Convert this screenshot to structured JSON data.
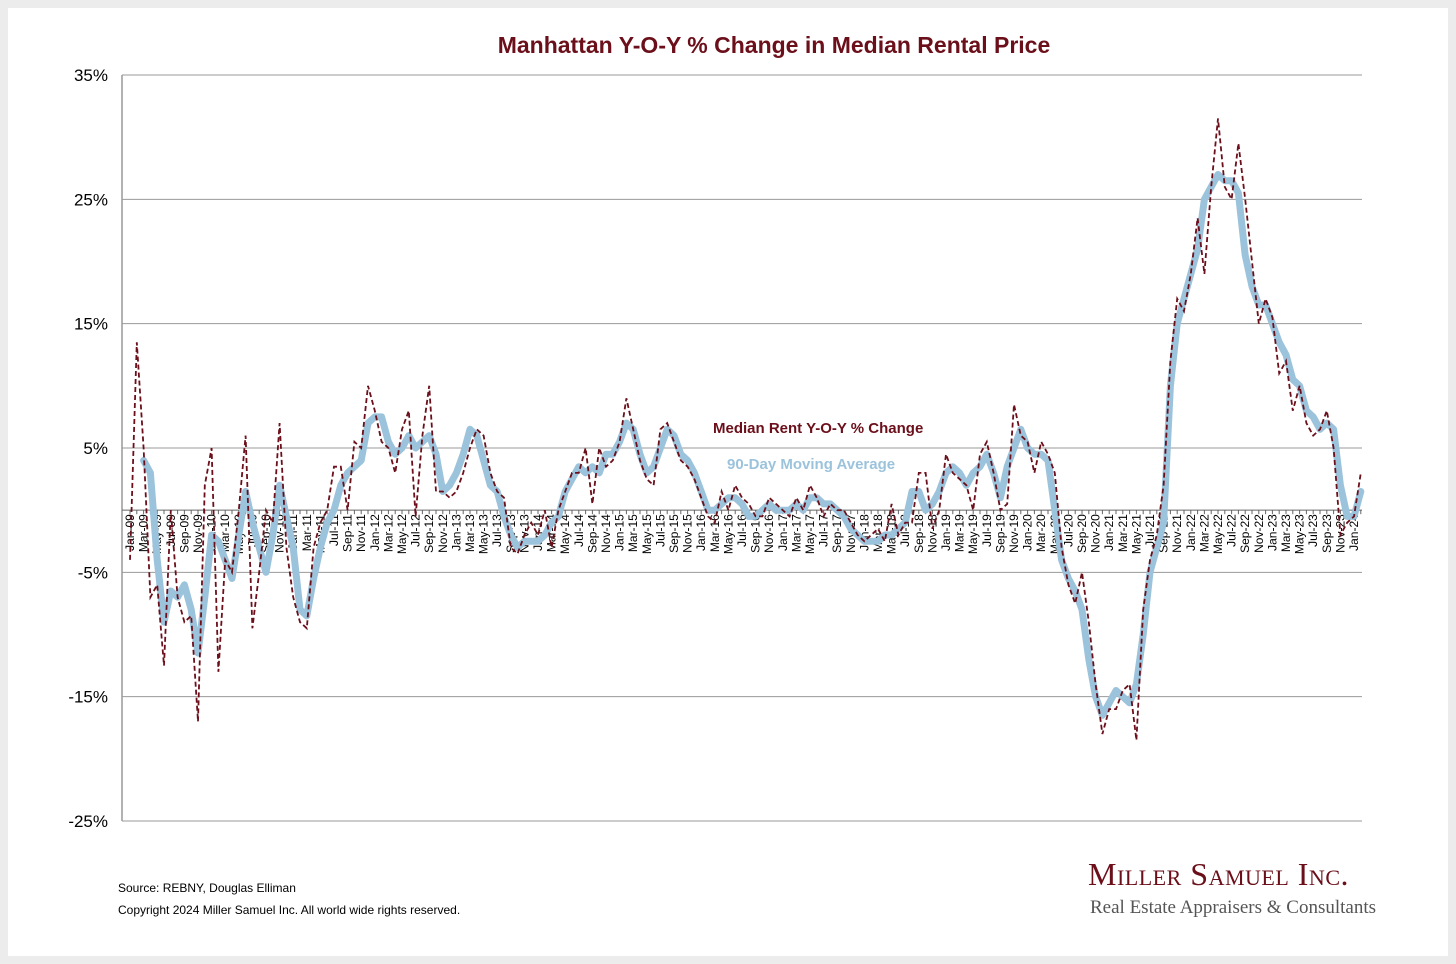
{
  "chart_data": {
    "type": "line",
    "title": "Manhattan Y-O-Y % Change in Median Rental Price",
    "xlabel": "",
    "ylabel": "",
    "ylim": [
      -25,
      35
    ],
    "yticks": [
      "35%",
      "25%",
      "15%",
      "5%",
      "-5%",
      "-15%",
      "-25%"
    ],
    "ytick_values": [
      35,
      25,
      15,
      5,
      -5,
      -15,
      -25
    ],
    "grid": true,
    "start_month": "Jan-09",
    "x_tick_labels_every_months": 2,
    "series": [
      {
        "name": "Median Rent Y-O-Y % Change",
        "style": "dashed",
        "color": "#6b0f1a",
        "values": [
          -4,
          13.5,
          5,
          -7,
          -6,
          -12.5,
          0,
          -7,
          -9,
          -8.5,
          -17,
          2,
          5,
          -13,
          -4,
          -5,
          0,
          6,
          -9.5,
          -5,
          0,
          -1,
          7,
          -3,
          -7,
          -9,
          -9.5,
          -3,
          -1,
          0,
          3.5,
          3.5,
          0,
          5.5,
          5,
          10,
          8,
          5.5,
          5,
          3,
          6.5,
          8,
          -0.5,
          6,
          10,
          1.5,
          1.5,
          1,
          1.5,
          3,
          5,
          6.5,
          6,
          3,
          1.5,
          1,
          -3,
          -3.5,
          -2,
          -1,
          -2,
          0,
          -3,
          0,
          1.5,
          3,
          3,
          5,
          0.5,
          5,
          3.5,
          4,
          5.5,
          9,
          6.5,
          4,
          2.5,
          2,
          6.5,
          7,
          5.5,
          4,
          3.5,
          2.5,
          1,
          -0.5,
          -1,
          1.5,
          0,
          2,
          1,
          0.5,
          -0.5,
          -0.5,
          1,
          0.5,
          0,
          -0.5,
          1,
          0,
          2,
          1,
          -0.5,
          0.5,
          0,
          0,
          -1,
          -2,
          -2.5,
          -2,
          -1.5,
          -2.5,
          0.5,
          -2,
          -1,
          -1,
          3,
          3,
          -1.5,
          0,
          4.5,
          3,
          2.5,
          2,
          0,
          4.5,
          5.5,
          3,
          0,
          0.5,
          8.5,
          6,
          5.5,
          3,
          5.5,
          4.5,
          3,
          -3,
          -6,
          -7.5,
          -5,
          -9,
          -14,
          -18,
          -16,
          -16,
          -14.5,
          -14,
          -18.5,
          -8,
          -4,
          -2,
          2,
          12,
          17,
          16,
          19,
          23.5,
          19,
          26,
          31.5,
          26,
          25,
          29.5,
          25,
          20,
          15,
          17,
          15.5,
          11,
          12,
          8,
          10,
          7,
          6,
          6.5,
          8,
          5,
          -2,
          -1,
          -0.5,
          3
        ]
      },
      {
        "name": "90-Day Moving Average",
        "style": "solid",
        "color": "#9cc3dc",
        "values": [
          null,
          null,
          4,
          3,
          -4,
          -9,
          -6.5,
          -7,
          -6,
          -8,
          -11.5,
          -7,
          -2,
          -2.5,
          -4,
          -5.5,
          -2,
          1.5,
          -1,
          -3,
          -5,
          -2,
          2,
          -0.5,
          -3,
          -8,
          -8.5,
          -5.5,
          -3,
          -1,
          0,
          2,
          3,
          3.5,
          4,
          7,
          7.5,
          7.5,
          5.5,
          4.5,
          5,
          6,
          5,
          5.5,
          6,
          4.5,
          1.5,
          2,
          3,
          4.5,
          6.5,
          6,
          4,
          2,
          1.5,
          -0.5,
          -2,
          -3,
          -2.5,
          -2.5,
          -2.5,
          -2,
          -1,
          -0.5,
          1.5,
          2.5,
          3.5,
          3,
          3.5,
          3,
          4.5,
          4.5,
          5.5,
          7,
          6.5,
          4.5,
          3,
          3.5,
          5,
          6.5,
          6,
          4.5,
          4,
          3,
          1.5,
          0,
          0,
          0.5,
          1,
          1,
          0.5,
          -0.5,
          -0.5,
          0,
          0.5,
          0,
          0,
          0,
          0.5,
          0,
          1,
          1,
          0.5,
          0.5,
          0,
          -0.5,
          -1.5,
          -2,
          -2.5,
          -2.5,
          -2.5,
          -2,
          -2,
          -1.5,
          -1,
          1.5,
          1.5,
          0,
          0.5,
          1.5,
          3,
          3.5,
          3,
          2,
          3,
          3.5,
          4.5,
          3,
          1,
          3.5,
          5,
          6.5,
          5,
          4.5,
          4.5,
          4,
          0,
          -4,
          -5.5,
          -6.5,
          -8,
          -12,
          -15,
          -16.5,
          -15.5,
          -14.5,
          -15,
          -15.5,
          -14,
          -10,
          -5,
          -3,
          -1,
          10,
          15,
          17,
          19,
          21,
          25,
          26,
          27,
          26.5,
          26.5,
          25.5,
          20.5,
          18,
          16.5,
          16.5,
          15,
          13.5,
          12.5,
          10.5,
          10,
          8,
          7.5,
          6.5,
          7,
          6.5,
          2,
          -0.5,
          -0.5,
          1.5
        ]
      }
    ],
    "legend_placement": "center (inline labels)"
  },
  "footer": {
    "source": "Source: REBNY, Douglas Elliman",
    "copyright": "Copyright 2024 Miller Samuel Inc.  All world wide rights reserved."
  },
  "logo": {
    "name": "Miller Samuel Inc.",
    "tagline": "Real Estate Appraisers & Consultants"
  },
  "colors": {
    "title": "#6b0f1a",
    "median": "#6b0f1a",
    "moving_average": "#9cc3dc",
    "grid": "#9a9a9a"
  }
}
